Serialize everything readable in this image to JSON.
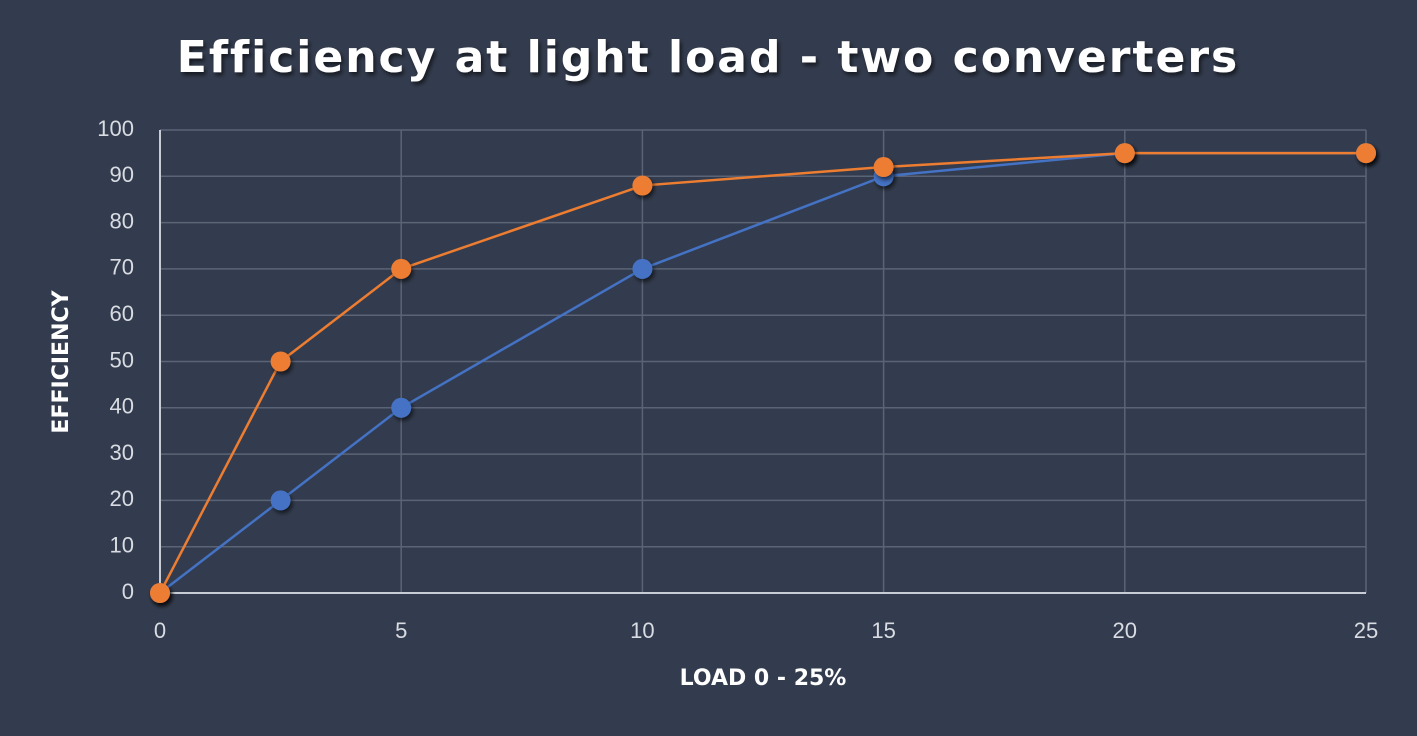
{
  "chart_data": {
    "type": "line",
    "title": "Efficiency at light load - two converters",
    "xlabel": "LOAD 0 - 25%",
    "ylabel": "EFFICIENCY",
    "x": [
      0,
      2.5,
      5,
      10,
      15,
      20,
      25
    ],
    "series": [
      {
        "color": "#4472c4",
        "values": [
          0,
          20,
          40,
          70,
          90,
          95,
          95
        ]
      },
      {
        "color": "#ed7d31",
        "values": [
          0,
          50,
          70,
          88,
          92,
          95,
          95
        ]
      }
    ],
    "xlim": [
      0,
      25
    ],
    "xticks": [
      0,
      5,
      10,
      15,
      20,
      25
    ],
    "ylim": [
      0,
      100
    ],
    "yticks": [
      0,
      10,
      20,
      30,
      40,
      50,
      60,
      70,
      80,
      90,
      100
    ],
    "grid": true
  }
}
